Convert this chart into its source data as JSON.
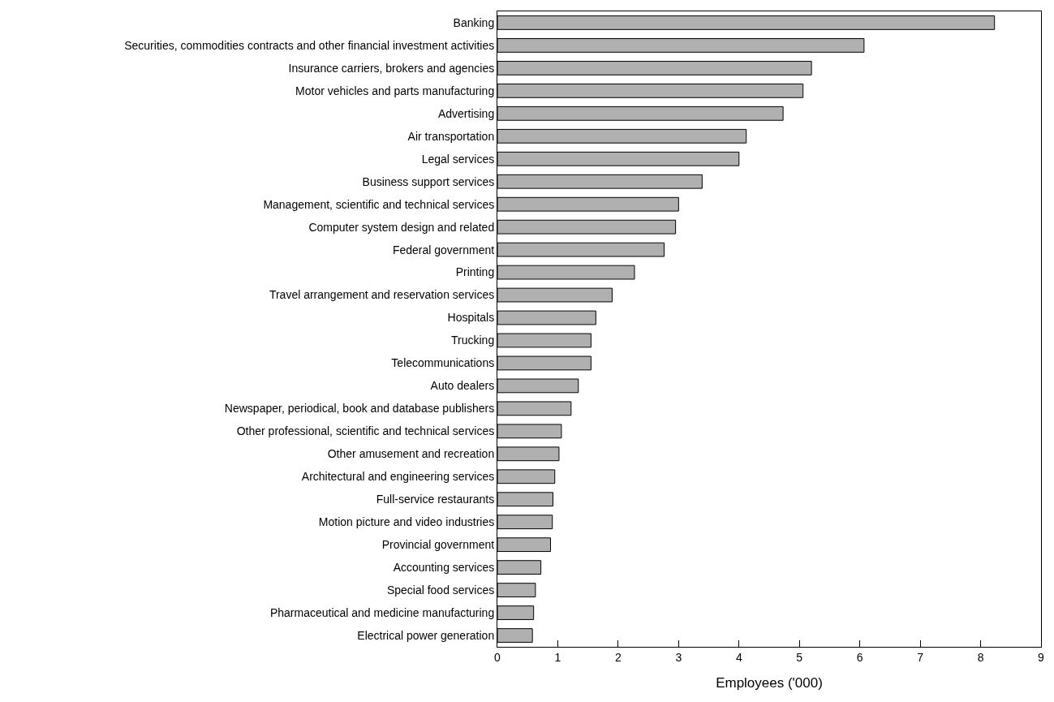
{
  "chart_data": {
    "type": "bar",
    "orientation": "horizontal",
    "xlabel": "Employees ('000)",
    "categories": [
      "Banking",
      "Securities, commodities contracts and other financial investment activities",
      "Insurance carriers, brokers and agencies",
      "Motor vehicles and parts manufacturing",
      "Advertising",
      "Air transportation",
      "Legal services",
      "Business support services",
      "Management, scientific and technical services",
      "Computer system design and related",
      "Federal government",
      "Printing",
      "Travel arrangement and reservation services",
      "Hospitals",
      "Trucking",
      "Telecommunications",
      "Auto dealers",
      "Newspaper, periodical, book and database publishers",
      "Other professional, scientific and technical services",
      "Other amusement and recreation",
      "Architectural and engineering services",
      "Full-service restaurants",
      "Motion picture and video industries",
      "Provincial government",
      "Accounting services",
      "Special food services",
      "Pharmaceutical and medicine manufacturing",
      "Electrical power generation"
    ],
    "values": [
      8.23,
      6.07,
      5.2,
      5.06,
      4.73,
      4.12,
      4.0,
      3.39,
      3.0,
      2.95,
      2.76,
      2.27,
      1.9,
      1.63,
      1.55,
      1.55,
      1.34,
      1.22,
      1.06,
      1.02,
      0.95,
      0.92,
      0.91,
      0.88,
      0.72,
      0.63,
      0.6,
      0.58
    ],
    "color": "#b0b0b0",
    "xlim": [
      0,
      9
    ],
    "xticks": [
      0,
      1,
      2,
      3,
      4,
      5,
      6,
      7,
      8,
      9
    ]
  }
}
